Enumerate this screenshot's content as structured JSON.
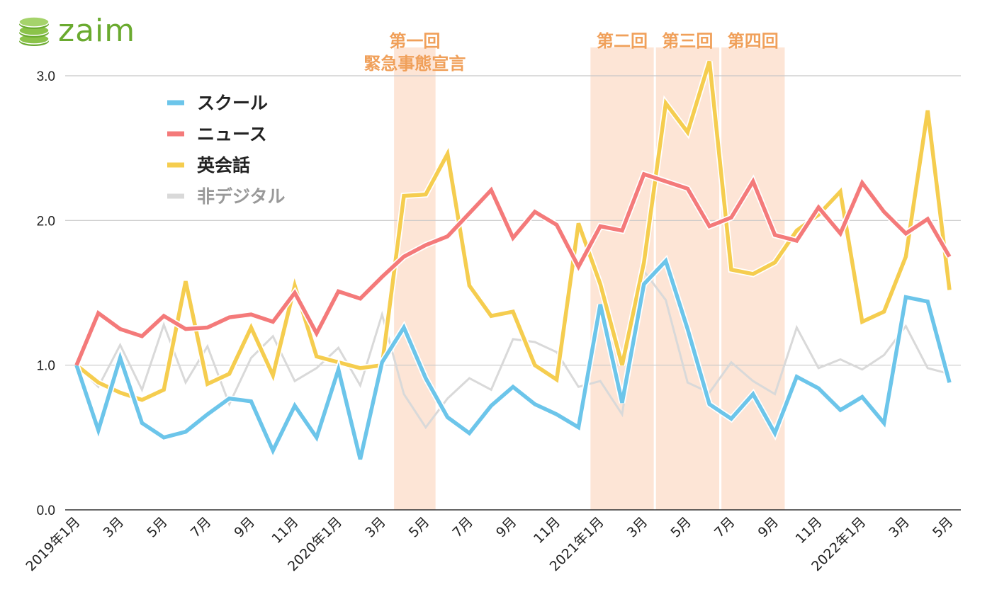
{
  "logo": {
    "text": "zaim",
    "color": "#6aaa2f"
  },
  "chart_data": {
    "type": "line",
    "title": "",
    "xlabel": "",
    "ylabel": "",
    "ylim": [
      0.0,
      3.0
    ],
    "yticks": [
      0.0,
      1.0,
      2.0,
      3.0
    ],
    "ytick_labels": [
      "0.0",
      "1.0",
      "2.0",
      "3.0"
    ],
    "grid": true,
    "legend_position": "top-left",
    "x": [
      "2019年1月",
      "2019年2月",
      "2019年3月",
      "2019年4月",
      "2019年5月",
      "2019年6月",
      "2019年7月",
      "2019年8月",
      "2019年9月",
      "2019年10月",
      "2019年11月",
      "2019年12月",
      "2020年1月",
      "2020年2月",
      "2020年3月",
      "2020年4月",
      "2020年5月",
      "2020年6月",
      "2020年7月",
      "2020年8月",
      "2020年9月",
      "2020年10月",
      "2020年11月",
      "2020年12月",
      "2021年1月",
      "2021年2月",
      "2021年3月",
      "2021年4月",
      "2021年5月",
      "2021年6月",
      "2021年7月",
      "2021年8月",
      "2021年9月",
      "2021年10月",
      "2021年11月",
      "2021年12月",
      "2022年1月",
      "2022年2月",
      "2022年3月",
      "2022年4月",
      "2022年5月"
    ],
    "xtick_labels": [
      "2019年1月",
      "",
      "3月",
      "",
      "5月",
      "",
      "7月",
      "",
      "9月",
      "",
      "11月",
      "",
      "2020年1月",
      "",
      "3月",
      "",
      "5月",
      "",
      "7月",
      "",
      "9月",
      "",
      "11月",
      "",
      "2021年1月",
      "",
      "3月",
      "",
      "5月",
      "",
      "7月",
      "",
      "9月",
      "",
      "11月",
      "",
      "2022年1月",
      "",
      "3月",
      "",
      "5月"
    ],
    "series": [
      {
        "name": "非デジタル",
        "color": "#d9d9d9",
        "values": [
          1.0,
          0.85,
          1.14,
          0.83,
          1.28,
          0.88,
          1.13,
          0.73,
          1.05,
          1.2,
          0.89,
          0.98,
          1.12,
          0.86,
          1.35,
          0.8,
          0.57,
          0.77,
          0.91,
          0.83,
          1.18,
          1.16,
          1.09,
          0.85,
          0.89,
          0.66,
          1.65,
          1.45,
          0.88,
          0.81,
          1.02,
          0.89,
          0.8,
          1.26,
          0.98,
          1.04,
          0.97,
          1.07,
          1.27,
          0.98,
          0.94
        ]
      },
      {
        "name": "英会話",
        "color": "#f5cd4f",
        "values": [
          1.0,
          0.88,
          0.81,
          0.76,
          0.83,
          1.58,
          0.87,
          0.94,
          1.26,
          0.93,
          1.55,
          1.06,
          1.02,
          0.98,
          1.0,
          2.17,
          2.18,
          2.46,
          1.55,
          1.34,
          1.37,
          1.0,
          0.9,
          1.98,
          1.56,
          1.0,
          1.71,
          2.81,
          2.61,
          3.1,
          1.66,
          1.63,
          1.71,
          1.93,
          2.04,
          2.2,
          1.3,
          1.37,
          1.75,
          2.76,
          1.52
        ]
      },
      {
        "name": "スクール",
        "color": "#6cc5ea",
        "values": [
          1.0,
          0.55,
          1.05,
          0.6,
          0.5,
          0.54,
          0.66,
          0.77,
          0.75,
          0.41,
          0.72,
          0.5,
          0.97,
          0.35,
          1.02,
          1.26,
          0.91,
          0.64,
          0.53,
          0.72,
          0.85,
          0.73,
          0.66,
          0.57,
          1.42,
          0.74,
          1.56,
          1.72,
          1.25,
          0.73,
          0.63,
          0.8,
          0.53,
          0.92,
          0.84,
          0.69,
          0.78,
          0.6,
          1.47,
          1.44,
          0.88
        ]
      },
      {
        "name": "ニュース",
        "color": "#f47a7a",
        "values": [
          1.0,
          1.36,
          1.25,
          1.2,
          1.34,
          1.25,
          1.26,
          1.33,
          1.35,
          1.3,
          1.5,
          1.22,
          1.51,
          1.46,
          1.61,
          1.75,
          1.83,
          1.89,
          2.05,
          2.21,
          1.88,
          2.06,
          1.97,
          1.68,
          1.96,
          1.93,
          2.32,
          2.27,
          2.22,
          1.96,
          2.02,
          2.27,
          1.9,
          1.86,
          2.09,
          1.91,
          2.26,
          2.06,
          1.91,
          2.01,
          1.75
        ]
      }
    ],
    "legend": [
      {
        "name": "スクール",
        "color": "#6cc5ea",
        "label_color": "#222222"
      },
      {
        "name": "ニュース",
        "color": "#f47a7a",
        "label_color": "#222222"
      },
      {
        "name": "英会話",
        "color": "#f5cd4f",
        "label_color": "#222222"
      },
      {
        "name": "非デジタル",
        "color": "#d9d9d9",
        "label_color": "#999999"
      }
    ],
    "shaded_periods": [
      {
        "label_lines": [
          "第一回",
          "緊急事態宣言"
        ],
        "start": "2020年4月",
        "end": "2020年5月"
      },
      {
        "label_lines": [
          "第二回"
        ],
        "start": "2021年1月",
        "end": "2021年3月"
      },
      {
        "label_lines": [
          "第三回"
        ],
        "start": "2021年4月",
        "end": "2021年6月"
      },
      {
        "label_lines": [
          "第四回"
        ],
        "start": "2021年7月",
        "end": "2021年9月"
      }
    ],
    "shade_color": "#fde5d6",
    "annotation_color": "#f0a05a"
  }
}
